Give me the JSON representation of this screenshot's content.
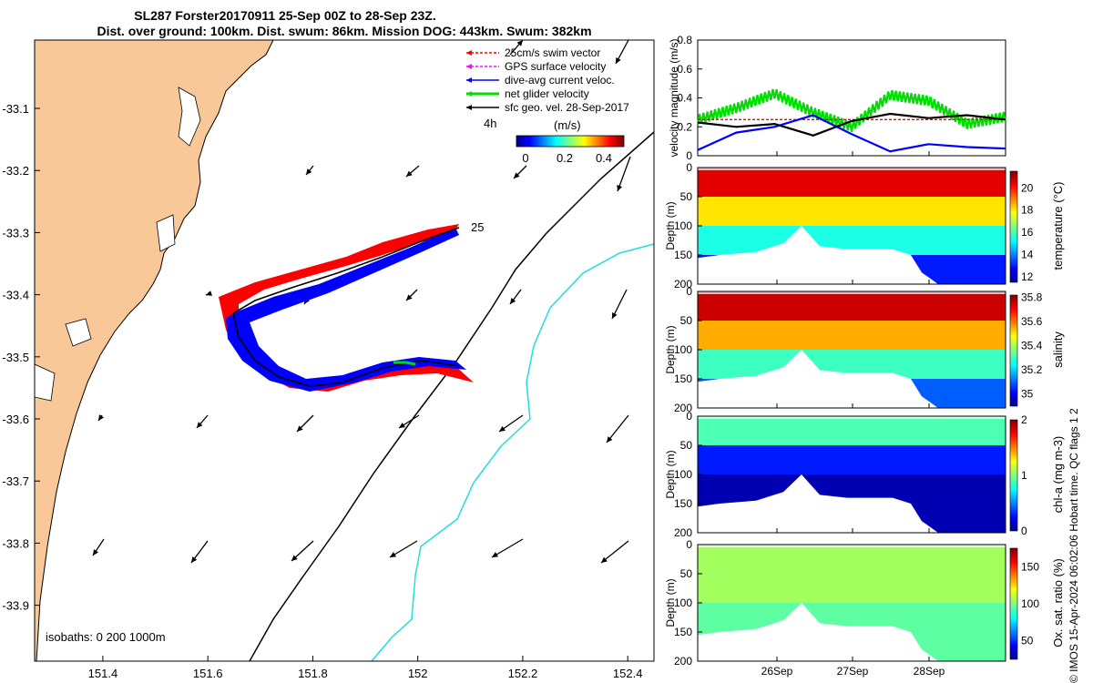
{
  "title": {
    "line1": "SL287 Forster20170911 25-Sep 00Z to 28-Sep 23Z.",
    "line2": "Dist. over ground: 100km. Dist. swum: 86km. Mission DOG: 443km. Swum: 382km"
  },
  "copyright": "© IMOS 15-Apr-2024 06:02:06 Hobart time. QC flags 1  2",
  "colors": {
    "land": "#f9c898",
    "swim": "#ff0000",
    "gps": "#ff00ff",
    "dive_avg": "#0000ff",
    "net": "#00dd00",
    "sfc_geo": "#000000",
    "isobath_200": "#000000",
    "isobath_1000": "#00dddd"
  },
  "map": {
    "xticks": [
      "151.4",
      "151.6",
      "151.8",
      "152",
      "152.2",
      "152.4"
    ],
    "yticks": [
      "-33.1",
      "-33.2",
      "-33.3",
      "-33.4",
      "-33.5",
      "-33.6",
      "-33.7",
      "-33.8",
      "-33.9"
    ],
    "xlim": [
      151.27,
      152.45
    ],
    "ylim": [
      -33.99,
      -32.99
    ],
    "isobaths_label": "isobaths: 0   200  1000m",
    "start_label": "25",
    "time_step_label": "4h",
    "units_label": "(m/s)",
    "colorbar_ticks": [
      "0",
      "0.2",
      "0.4"
    ],
    "legend": [
      {
        "label": "25cm/s swim vector",
        "color": "#ff0000",
        "dashed": true
      },
      {
        "label": "GPS surface velocity",
        "color": "#ff00ff",
        "dashed": true
      },
      {
        "label": "dive-avg current veloc.",
        "color": "#0000ff",
        "dashed": false
      },
      {
        "label": "net glider velocity",
        "color": "#00dd00",
        "dashed": false
      },
      {
        "label": "sfc geo. vel. 28-Sep-2017",
        "color": "#000000",
        "dashed": false
      }
    ]
  },
  "chart_data": [
    {
      "type": "line",
      "panel": "velocity",
      "ylabel": "velocity magnitude (m/s)",
      "yticks": [
        "0",
        "0.2",
        "0.4",
        "0.6",
        "0.8"
      ],
      "ylim": [
        0,
        0.8
      ],
      "x": [
        "25-Sep 00Z",
        "25-Sep 12Z",
        "26-Sep 00Z",
        "26-Sep 12Z",
        "27-Sep 00Z",
        "27-Sep 12Z",
        "28-Sep 00Z",
        "28-Sep 12Z",
        "28-Sep 23Z"
      ],
      "series": [
        {
          "color": "#00dd00",
          "values": [
            0.25,
            0.33,
            0.43,
            0.3,
            0.2,
            0.42,
            0.38,
            0.22,
            0.27
          ]
        },
        {
          "color": "#ff0000",
          "values": [
            0.25,
            0.25,
            0.25,
            0.25,
            0.25,
            0.25,
            0.25,
            0.25,
            0.25
          ]
        },
        {
          "color": "#0000ff",
          "values": [
            0.04,
            0.16,
            0.2,
            0.28,
            0.15,
            0.03,
            0.08,
            0.06,
            0.05
          ]
        },
        {
          "color": "#000000",
          "values": [
            0.23,
            0.2,
            0.22,
            0.14,
            0.24,
            0.29,
            0.26,
            0.28,
            0.25
          ]
        }
      ]
    },
    {
      "type": "heatmap",
      "panel": "temperature",
      "ylabel": "Depth (m)",
      "yticks": [
        "0",
        "50",
        "100",
        "150",
        "200"
      ],
      "ylim": [
        200,
        0
      ],
      "colorbar_label": "temperature (°C)",
      "colorbar_ticks": [
        "12",
        "14",
        "16",
        "18",
        "20"
      ],
      "crange": [
        11.5,
        21.5
      ],
      "layers": [
        {
          "depth_to": 50,
          "value": 20.5
        },
        {
          "depth_to": 100,
          "value": 18.0
        },
        {
          "depth_to": 150,
          "value": 15.5
        },
        {
          "depth_to": 200,
          "value": 13.0
        }
      ]
    },
    {
      "type": "heatmap",
      "panel": "salinity",
      "ylabel": "Depth (m)",
      "yticks": [
        "0",
        "50",
        "100",
        "150",
        "200"
      ],
      "ylim": [
        200,
        0
      ],
      "colorbar_label": "salinity",
      "colorbar_ticks": [
        "35",
        "35.2",
        "35.4",
        "35.6",
        "35.8"
      ],
      "crange": [
        34.9,
        35.82
      ],
      "layers": [
        {
          "depth_to": 50,
          "value": 35.75
        },
        {
          "depth_to": 100,
          "value": 35.55
        },
        {
          "depth_to": 150,
          "value": 35.3
        },
        {
          "depth_to": 200,
          "value": 35.1
        }
      ]
    },
    {
      "type": "heatmap",
      "panel": "chl-a",
      "ylabel": "Depth (m)",
      "yticks": [
        "0",
        "50",
        "100",
        "150",
        "200"
      ],
      "ylim": [
        200,
        0
      ],
      "colorbar_label": "chl-a (mg m-3)",
      "colorbar_ticks": [
        "0",
        "1",
        "2"
      ],
      "crange": [
        0,
        2
      ],
      "layers": [
        {
          "depth_to": 50,
          "value": 0.9
        },
        {
          "depth_to": 100,
          "value": 0.3
        },
        {
          "depth_to": 200,
          "value": 0.1
        }
      ]
    },
    {
      "type": "heatmap",
      "panel": "oxygen",
      "ylabel": "Depth (m)",
      "yticks": [
        "0",
        "50",
        "100",
        "150",
        "200"
      ],
      "ylim": [
        200,
        0
      ],
      "colorbar_label": "Ox. sat. ratio (%)",
      "colorbar_ticks": [
        "50",
        "100",
        "150"
      ],
      "crange": [
        25,
        175
      ],
      "layers": [
        {
          "depth_to": 100,
          "value": 105
        },
        {
          "depth_to": 200,
          "value": 95
        }
      ]
    }
  ],
  "time_axis": {
    "ticks": [
      "26Sep",
      "27Sep",
      "28Sep"
    ]
  }
}
